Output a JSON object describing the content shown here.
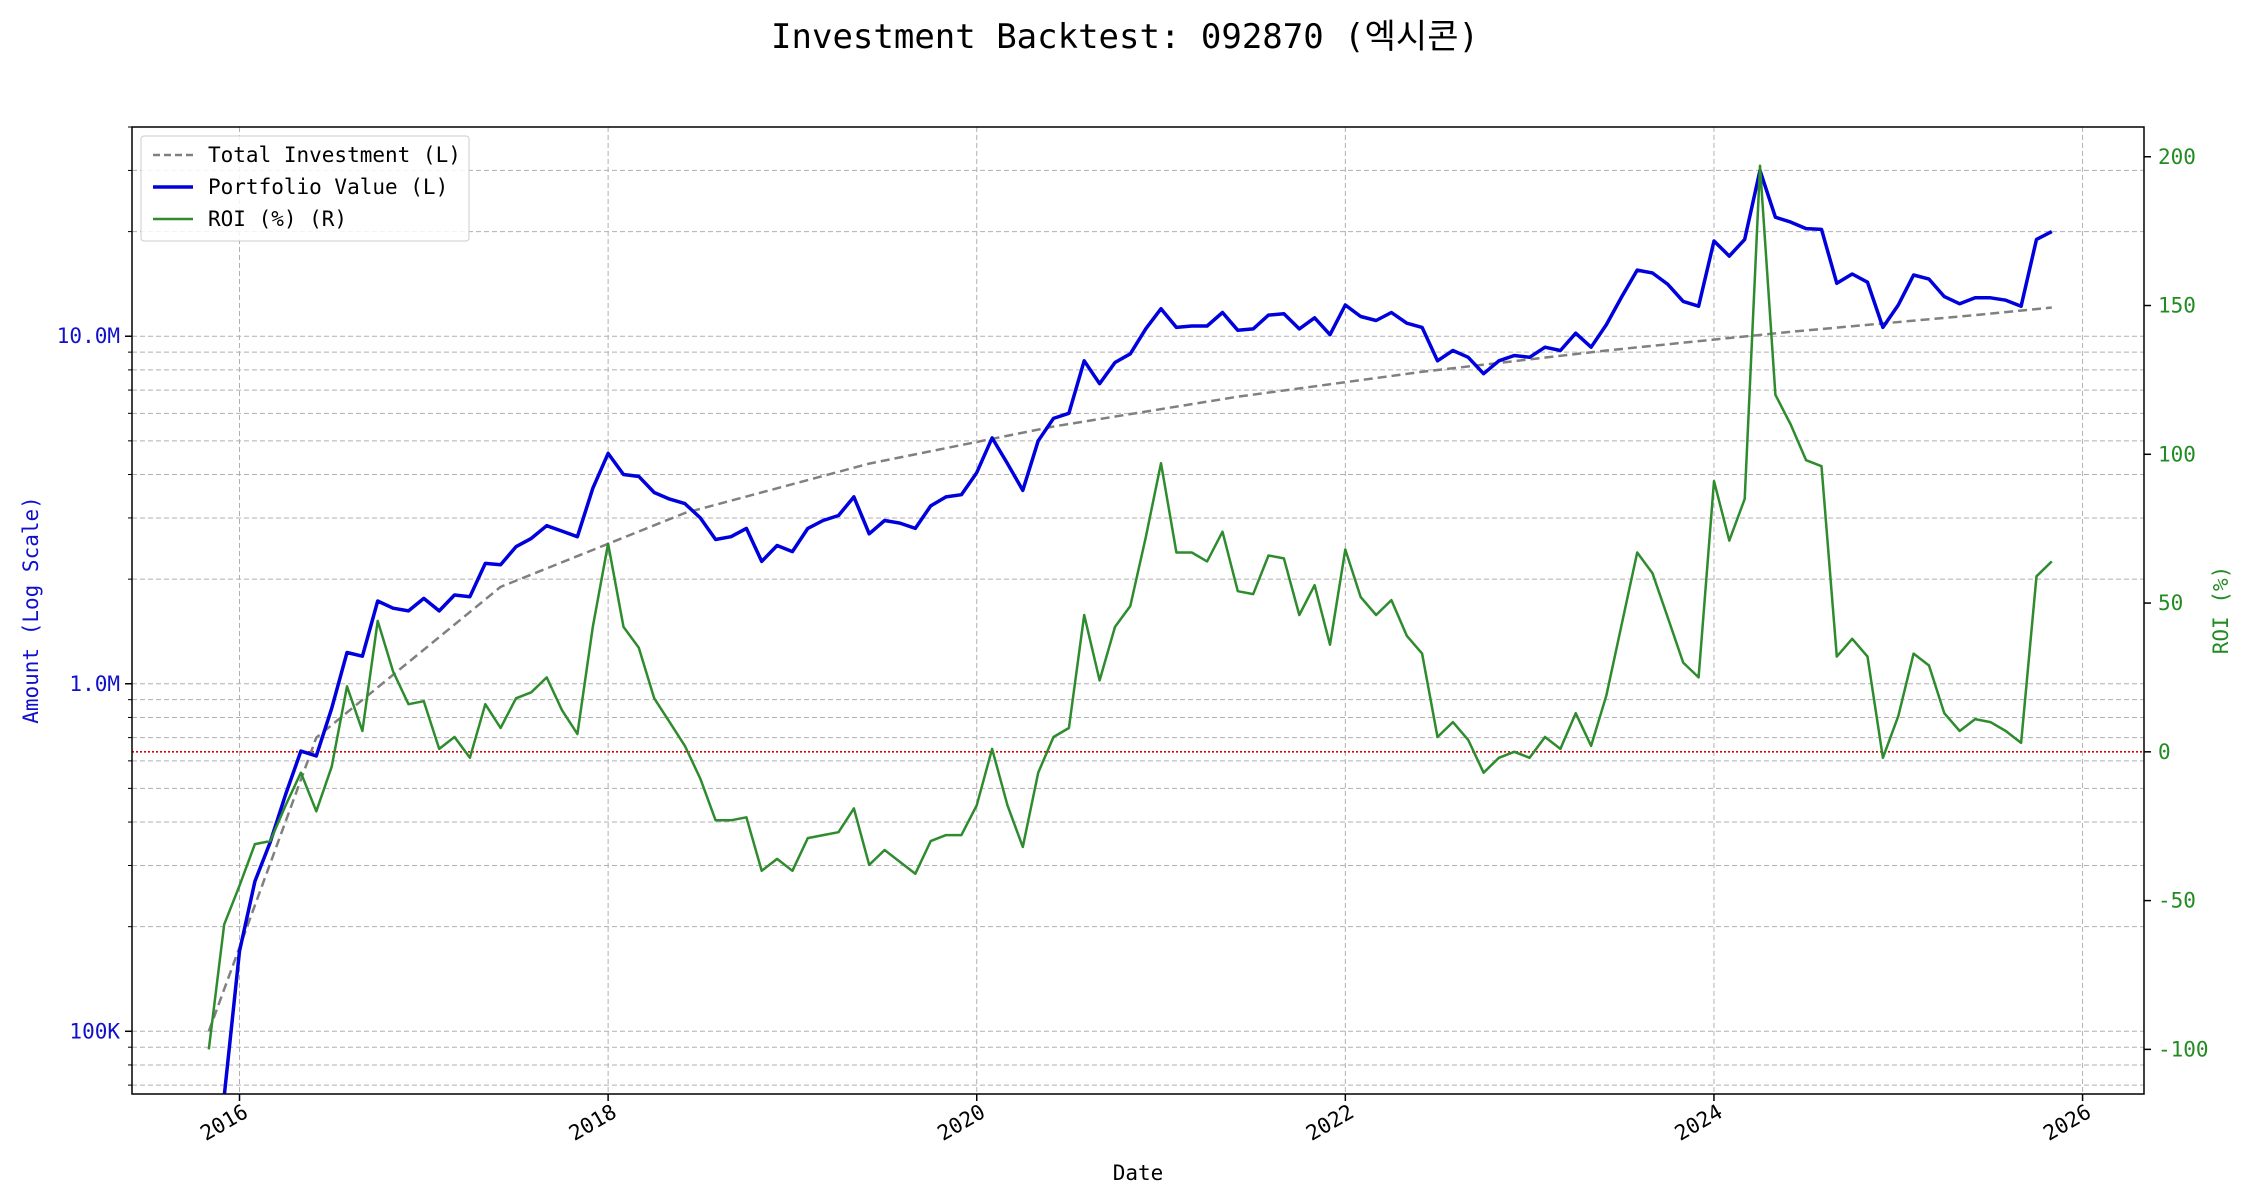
{
  "chart_data": {
    "type": "line",
    "title": "Investment Backtest: 092870 (엑시콘)",
    "xlabel": "Date",
    "ylabel_left": "Amount (Log Scale)",
    "ylabel_right": "ROI (%)",
    "x_ticks": [
      "2016",
      "2018",
      "2020",
      "2022",
      "2024",
      "2026"
    ],
    "y_left_ticks": [
      "100K",
      "1.0M",
      "10.0M"
    ],
    "y_right_ticks": [
      "-100",
      "-50",
      "0",
      "50",
      "100",
      "150",
      "200"
    ],
    "y_left_scale": "log",
    "y_left_range": [
      66000,
      40000000
    ],
    "y_right_range": [
      -115,
      210
    ],
    "x_range": [
      "2015-06",
      "2026-05"
    ],
    "grid": true,
    "legend_position": "upper-left",
    "zero_line_color": "#e00000",
    "colors": {
      "investment": "#808080",
      "portfolio": "#0000dd",
      "roi": "#2e8b2e"
    },
    "series": [
      {
        "name": "Total Investment (L)",
        "axis": "left",
        "style": "dashed",
        "x": [
          "2015-11",
          "2016-06",
          "2017-06",
          "2018-06",
          "2019-06",
          "2020-06",
          "2021-06",
          "2022-06",
          "2023-06",
          "2024-06",
          "2025-06",
          "2025-11"
        ],
        "values": [
          100000,
          700000,
          1900000,
          3100000,
          4300000,
          5500000,
          6700000,
          7900000,
          9100000,
          10300000,
          11500000,
          12100000
        ]
      },
      {
        "name": "Portfolio Value (L)",
        "axis": "left",
        "style": "solid",
        "x": [
          "2015-12",
          "2016-01",
          "2016-02",
          "2016-03",
          "2016-04",
          "2016-05",
          "2016-06",
          "2016-07",
          "2016-08",
          "2016-09",
          "2016-10",
          "2016-11",
          "2016-12",
          "2017-01",
          "2017-02",
          "2017-03",
          "2017-04",
          "2017-05",
          "2017-06",
          "2017-07",
          "2017-08",
          "2017-09",
          "2017-10",
          "2017-11",
          "2017-12",
          "2018-01",
          "2018-02",
          "2018-03",
          "2018-04",
          "2018-05",
          "2018-06",
          "2018-07",
          "2018-08",
          "2018-09",
          "2018-10",
          "2018-11",
          "2018-12",
          "2019-01",
          "2019-02",
          "2019-03",
          "2019-04",
          "2019-05",
          "2019-06",
          "2019-07",
          "2019-08",
          "2019-09",
          "2019-10",
          "2019-11",
          "2019-12",
          "2020-01",
          "2020-02",
          "2020-03",
          "2020-04",
          "2020-05",
          "2020-06",
          "2020-07",
          "2020-08",
          "2020-09",
          "2020-10",
          "2020-11",
          "2020-12",
          "2021-01",
          "2021-02",
          "2021-03",
          "2021-04",
          "2021-05",
          "2021-06",
          "2021-07",
          "2021-08",
          "2021-09",
          "2021-10",
          "2021-11",
          "2021-12",
          "2022-01",
          "2022-02",
          "2022-03",
          "2022-04",
          "2022-05",
          "2022-06",
          "2022-07",
          "2022-08",
          "2022-09",
          "2022-10",
          "2022-11",
          "2022-12",
          "2023-01",
          "2023-02",
          "2023-03",
          "2023-04",
          "2023-05",
          "2023-06",
          "2023-07",
          "2023-08",
          "2023-09",
          "2023-10",
          "2023-11",
          "2023-12",
          "2024-01",
          "2024-02",
          "2024-03",
          "2024-04",
          "2024-05",
          "2024-06",
          "2024-07",
          "2024-08",
          "2024-09",
          "2024-10",
          "2024-11",
          "2024-12",
          "2025-01",
          "2025-02",
          "2025-03",
          "2025-04",
          "2025-05",
          "2025-06",
          "2025-07",
          "2025-08",
          "2025-09",
          "2025-10",
          "2025-11"
        ],
        "values": [
          65000,
          170000,
          270000,
          350000,
          480000,
          640000,
          620000,
          850000,
          1230000,
          1200000,
          1730000,
          1650000,
          1620000,
          1760000,
          1620000,
          1800000,
          1780000,
          2220000,
          2200000,
          2480000,
          2620000,
          2850000,
          2750000,
          2650000,
          3650000,
          4600000,
          4000000,
          3950000,
          3550000,
          3400000,
          3300000,
          3000000,
          2600000,
          2650000,
          2800000,
          2250000,
          2500000,
          2400000,
          2800000,
          2950000,
          3050000,
          3450000,
          2700000,
          2950000,
          2900000,
          2800000,
          3250000,
          3450000,
          3500000,
          4050000,
          5100000,
          4300000,
          3600000,
          5000000,
          5800000,
          6000000,
          8500000,
          7300000,
          8400000,
          8900000,
          10500000,
          12000000,
          10600000,
          10700000,
          10700000,
          11700000,
          10400000,
          10500000,
          11500000,
          11600000,
          10500000,
          11300000,
          10100000,
          12300000,
          11400000,
          11100000,
          11700000,
          10900000,
          10600000,
          8500000,
          9100000,
          8700000,
          7800000,
          8500000,
          8800000,
          8700000,
          9300000,
          9100000,
          10200000,
          9300000,
          10800000,
          13000000,
          15500000,
          15200000,
          14100000,
          12600000,
          12200000,
          18800000,
          17000000,
          19000000,
          30000000,
          22000000,
          21300000,
          20400000,
          20300000,
          14200000,
          15100000,
          14300000,
          10600000,
          12300000,
          15000000,
          14600000,
          13000000,
          12400000,
          12900000,
          12900000,
          12700000,
          12200000,
          19000000,
          20000000
        ]
      },
      {
        "name": "ROI (%) (R)",
        "axis": "right",
        "style": "solid",
        "x": [
          "2015-11",
          "2015-12",
          "2016-01",
          "2016-02",
          "2016-03",
          "2016-04",
          "2016-05",
          "2016-06",
          "2016-07",
          "2016-08",
          "2016-09",
          "2016-10",
          "2016-11",
          "2016-12",
          "2017-01",
          "2017-02",
          "2017-03",
          "2017-04",
          "2017-05",
          "2017-06",
          "2017-07",
          "2017-08",
          "2017-09",
          "2017-10",
          "2017-11",
          "2017-12",
          "2018-01",
          "2018-02",
          "2018-03",
          "2018-04",
          "2018-05",
          "2018-06",
          "2018-07",
          "2018-08",
          "2018-09",
          "2018-10",
          "2018-11",
          "2018-12",
          "2019-01",
          "2019-02",
          "2019-03",
          "2019-04",
          "2019-05",
          "2019-06",
          "2019-07",
          "2019-08",
          "2019-09",
          "2019-10",
          "2019-11",
          "2019-12",
          "2020-01",
          "2020-02",
          "2020-03",
          "2020-04",
          "2020-05",
          "2020-06",
          "2020-07",
          "2020-08",
          "2020-09",
          "2020-10",
          "2020-11",
          "2020-12",
          "2021-01",
          "2021-02",
          "2021-03",
          "2021-04",
          "2021-05",
          "2021-06",
          "2021-07",
          "2021-08",
          "2021-09",
          "2021-10",
          "2021-11",
          "2021-12",
          "2022-01",
          "2022-02",
          "2022-03",
          "2022-04",
          "2022-05",
          "2022-06",
          "2022-07",
          "2022-08",
          "2022-09",
          "2022-10",
          "2022-11",
          "2022-12",
          "2023-01",
          "2023-02",
          "2023-03",
          "2023-04",
          "2023-05",
          "2023-06",
          "2023-07",
          "2023-08",
          "2023-09",
          "2023-10",
          "2023-11",
          "2023-12",
          "2024-01",
          "2024-02",
          "2024-03",
          "2024-04",
          "2024-05",
          "2024-06",
          "2024-07",
          "2024-08",
          "2024-09",
          "2024-10",
          "2024-11",
          "2024-12",
          "2025-01",
          "2025-02",
          "2025-03",
          "2025-04",
          "2025-05",
          "2025-06",
          "2025-07",
          "2025-08",
          "2025-09",
          "2025-10",
          "2025-11"
        ],
        "values": [
          -100,
          -58,
          -45,
          -31,
          -30,
          -18,
          -7,
          -20,
          -5,
          22,
          7,
          44,
          27,
          16,
          17,
          1,
          5,
          -2,
          16,
          8,
          18,
          20,
          25,
          14,
          6,
          42,
          70,
          42,
          35,
          18,
          10,
          2,
          -9,
          -23,
          -23,
          -22,
          -40,
          -36,
          -40,
          -29,
          -28,
          -27,
          -19,
          -38,
          -33,
          -37,
          -41,
          -30,
          -28,
          -28,
          -18,
          1,
          -18,
          -32,
          -7,
          5,
          8,
          46,
          24,
          42,
          49,
          72,
          97,
          67,
          67,
          64,
          74,
          54,
          53,
          66,
          65,
          46,
          56,
          36,
          68,
          52,
          46,
          51,
          39,
          33,
          5,
          10,
          4,
          -7,
          -2,
          0,
          -2,
          5,
          1,
          13,
          2,
          19,
          43,
          67,
          60,
          45,
          30,
          25,
          91,
          71,
          85,
          197,
          120,
          110,
          98,
          96,
          32,
          38,
          32,
          -2,
          12,
          33,
          29,
          13,
          7,
          11,
          10,
          7,
          3,
          59,
          64
        ]
      }
    ]
  }
}
